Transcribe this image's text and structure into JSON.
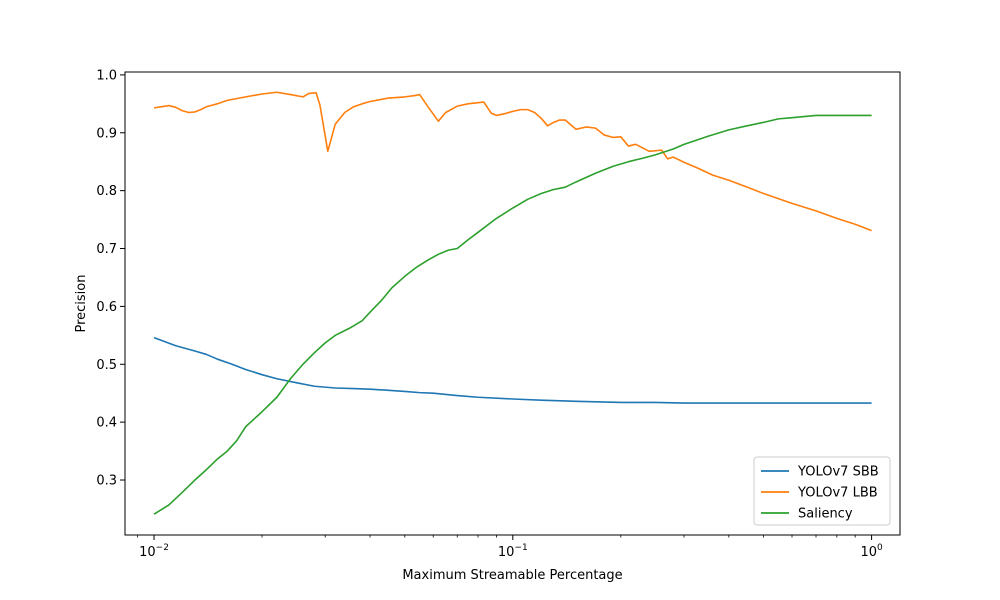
{
  "chart_data": {
    "type": "line",
    "title": "",
    "xlabel": "Maximum Streamable Percentage",
    "ylabel": "Precision",
    "xscale": "log",
    "xlim": [
      0.0083,
      1.2
    ],
    "ylim": [
      0.205,
      1.005
    ],
    "x_ticks": [
      {
        "value": 0.01,
        "base": "10",
        "exp": "−2"
      },
      {
        "value": 0.1,
        "base": "10",
        "exp": "−1"
      },
      {
        "value": 1,
        "base": "10",
        "exp": "0"
      }
    ],
    "y_ticks": [
      {
        "value": 0.3,
        "label": "0.3"
      },
      {
        "value": 0.4,
        "label": "0.4"
      },
      {
        "value": 0.5,
        "label": "0.5"
      },
      {
        "value": 0.6,
        "label": "0.6"
      },
      {
        "value": 0.7,
        "label": "0.7"
      },
      {
        "value": 0.8,
        "label": "0.8"
      },
      {
        "value": 0.9,
        "label": "0.9"
      },
      {
        "value": 1.0,
        "label": "1.0"
      }
    ],
    "grid": false,
    "legend_position": "lower-right",
    "series": [
      {
        "name": "YOLOv7 SBB",
        "color": "#1f77b4",
        "x": [
          0.01,
          0.0115,
          0.013,
          0.014,
          0.015,
          0.0165,
          0.018,
          0.02,
          0.022,
          0.025,
          0.028,
          0.032,
          0.036,
          0.04,
          0.045,
          0.05,
          0.055,
          0.06,
          0.07,
          0.08,
          0.1,
          0.12,
          0.15,
          0.2,
          0.25,
          0.3,
          0.4,
          0.5,
          0.7,
          1.0
        ],
        "values": [
          0.546,
          0.532,
          0.523,
          0.517,
          0.509,
          0.5,
          0.491,
          0.482,
          0.475,
          0.468,
          0.462,
          0.459,
          0.458,
          0.457,
          0.455,
          0.453,
          0.451,
          0.45,
          0.446,
          0.443,
          0.44,
          0.438,
          0.436,
          0.434,
          0.434,
          0.433,
          0.433,
          0.433,
          0.433,
          0.433
        ]
      },
      {
        "name": "YOLOv7 LBB",
        "color": "#ff7f0e",
        "x": [
          0.01,
          0.0105,
          0.011,
          0.0115,
          0.012,
          0.0125,
          0.013,
          0.0135,
          0.014,
          0.015,
          0.016,
          0.018,
          0.02,
          0.022,
          0.024,
          0.026,
          0.027,
          0.0283,
          0.029,
          0.0305,
          0.032,
          0.034,
          0.036,
          0.038,
          0.04,
          0.045,
          0.05,
          0.053,
          0.055,
          0.058,
          0.062,
          0.065,
          0.07,
          0.075,
          0.08,
          0.083,
          0.087,
          0.09,
          0.095,
          0.1,
          0.105,
          0.11,
          0.115,
          0.12,
          0.125,
          0.13,
          0.135,
          0.14,
          0.15,
          0.16,
          0.17,
          0.18,
          0.19,
          0.2,
          0.21,
          0.22,
          0.24,
          0.26,
          0.27,
          0.28,
          0.3,
          0.33,
          0.36,
          0.4,
          0.45,
          0.5,
          0.6,
          0.7,
          0.8,
          0.9,
          1.0
        ],
        "values": [
          0.943,
          0.945,
          0.947,
          0.944,
          0.938,
          0.935,
          0.936,
          0.94,
          0.945,
          0.95,
          0.956,
          0.962,
          0.967,
          0.97,
          0.966,
          0.962,
          0.968,
          0.969,
          0.948,
          0.868,
          0.915,
          0.935,
          0.945,
          0.95,
          0.954,
          0.96,
          0.962,
          0.964,
          0.966,
          0.945,
          0.92,
          0.935,
          0.946,
          0.95,
          0.952,
          0.953,
          0.934,
          0.93,
          0.933,
          0.937,
          0.94,
          0.94,
          0.935,
          0.925,
          0.912,
          0.918,
          0.922,
          0.922,
          0.906,
          0.91,
          0.908,
          0.896,
          0.892,
          0.893,
          0.877,
          0.88,
          0.868,
          0.87,
          0.855,
          0.858,
          0.849,
          0.838,
          0.827,
          0.818,
          0.806,
          0.795,
          0.778,
          0.765,
          0.752,
          0.742,
          0.731
        ]
      },
      {
        "name": "Saliency",
        "color": "#2ca02c",
        "x": [
          0.01,
          0.011,
          0.012,
          0.013,
          0.014,
          0.015,
          0.016,
          0.017,
          0.018,
          0.02,
          0.022,
          0.024,
          0.026,
          0.028,
          0.03,
          0.032,
          0.035,
          0.038,
          0.04,
          0.043,
          0.046,
          0.05,
          0.054,
          0.058,
          0.062,
          0.066,
          0.07,
          0.075,
          0.08,
          0.09,
          0.1,
          0.11,
          0.12,
          0.13,
          0.14,
          0.15,
          0.17,
          0.19,
          0.21,
          0.23,
          0.25,
          0.28,
          0.3,
          0.35,
          0.4,
          0.45,
          0.5,
          0.55,
          0.6,
          0.7,
          0.8,
          1.0
        ],
        "values": [
          0.241,
          0.257,
          0.279,
          0.3,
          0.318,
          0.336,
          0.35,
          0.368,
          0.392,
          0.418,
          0.443,
          0.475,
          0.5,
          0.52,
          0.537,
          0.55,
          0.562,
          0.575,
          0.59,
          0.61,
          0.632,
          0.652,
          0.668,
          0.68,
          0.69,
          0.697,
          0.7,
          0.715,
          0.728,
          0.752,
          0.77,
          0.785,
          0.795,
          0.802,
          0.806,
          0.815,
          0.83,
          0.842,
          0.85,
          0.856,
          0.862,
          0.872,
          0.88,
          0.894,
          0.905,
          0.912,
          0.918,
          0.924,
          0.926,
          0.93,
          0.93,
          0.93
        ]
      }
    ]
  }
}
